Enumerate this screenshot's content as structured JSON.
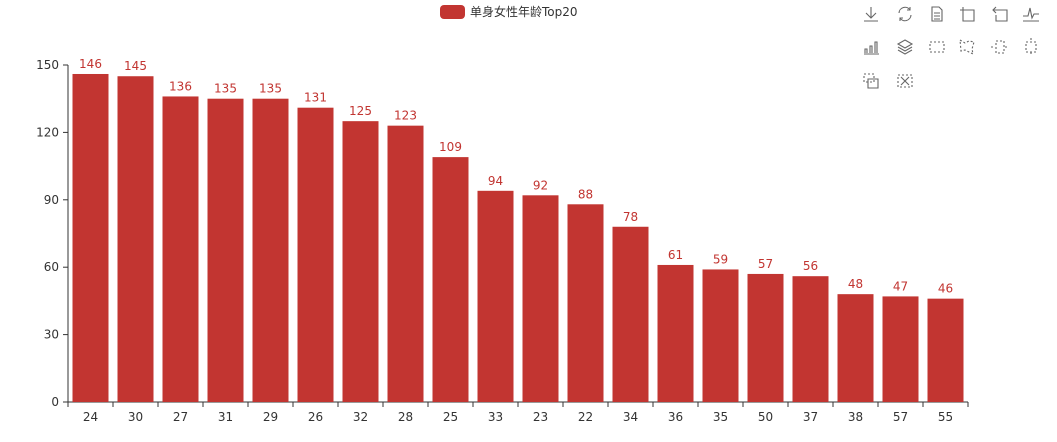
{
  "legend": {
    "label": "单身女性年龄Top20",
    "color": "#c23531"
  },
  "toolbox": [
    "download-icon",
    "refresh-icon",
    "data-view-icon",
    "zoom-icon",
    "zoom-back-icon",
    "line-chart-icon",
    "bar-chart-icon",
    "stack-icon",
    "rect-select-icon",
    "polygon-select-icon",
    "line-x-select-icon",
    "line-y-select-icon",
    "keep-select-icon",
    "clear-select-icon"
  ],
  "chart_data": {
    "type": "bar",
    "categories": [
      "24",
      "30",
      "27",
      "31",
      "29",
      "26",
      "32",
      "28",
      "25",
      "33",
      "23",
      "22",
      "34",
      "36",
      "35",
      "50",
      "37",
      "38",
      "57",
      "55"
    ],
    "series": [
      {
        "name": "单身女性年龄Top20",
        "values": [
          146,
          145,
          136,
          135,
          135,
          131,
          125,
          123,
          109,
          94,
          92,
          88,
          78,
          61,
          59,
          57,
          56,
          48,
          47,
          46
        ]
      }
    ],
    "ylim": [
      0,
      150
    ],
    "yticks": [
      0,
      30,
      60,
      90,
      120,
      150
    ],
    "grid": false,
    "legend_position": "top-center",
    "color": "#c23531",
    "label_color": "#c23531"
  }
}
